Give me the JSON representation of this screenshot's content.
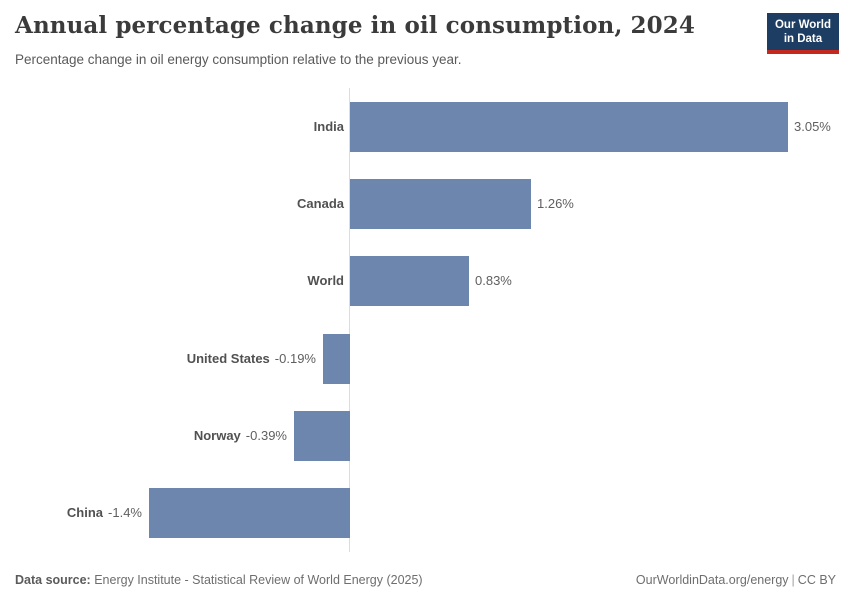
{
  "header": {
    "title": "Annual percentage change in oil consumption, 2024",
    "subtitle": "Percentage change in oil energy consumption relative to the previous year.",
    "logo": {
      "line1": "Our World",
      "line2": "in Data"
    }
  },
  "chart_data": {
    "type": "bar",
    "orientation": "horizontal",
    "title": "Annual percentage change in oil consumption, 2024",
    "xlabel": "",
    "ylabel": "",
    "categories": [
      "India",
      "Canada",
      "World",
      "United States",
      "Norway",
      "China"
    ],
    "values": [
      3.05,
      1.26,
      0.83,
      -0.19,
      -0.39,
      -1.4
    ],
    "value_labels": [
      "3.05%",
      "1.26%",
      "0.83%",
      "-0.19%",
      "-0.39%",
      "-1.4%"
    ],
    "xlim": [
      -1.4,
      3.05
    ],
    "grid": false,
    "legend": false,
    "bar_color": "#6d86ad",
    "axis_line_color": "#dcdcdc",
    "label_color": "#555555"
  },
  "footer": {
    "source_label": "Data source:",
    "source_text": " Energy Institute - Statistical Review of World Energy (2025)",
    "credit_url": "OurWorldinData.org/energy",
    "credit_sep": "|",
    "credit_license": "CC BY"
  }
}
